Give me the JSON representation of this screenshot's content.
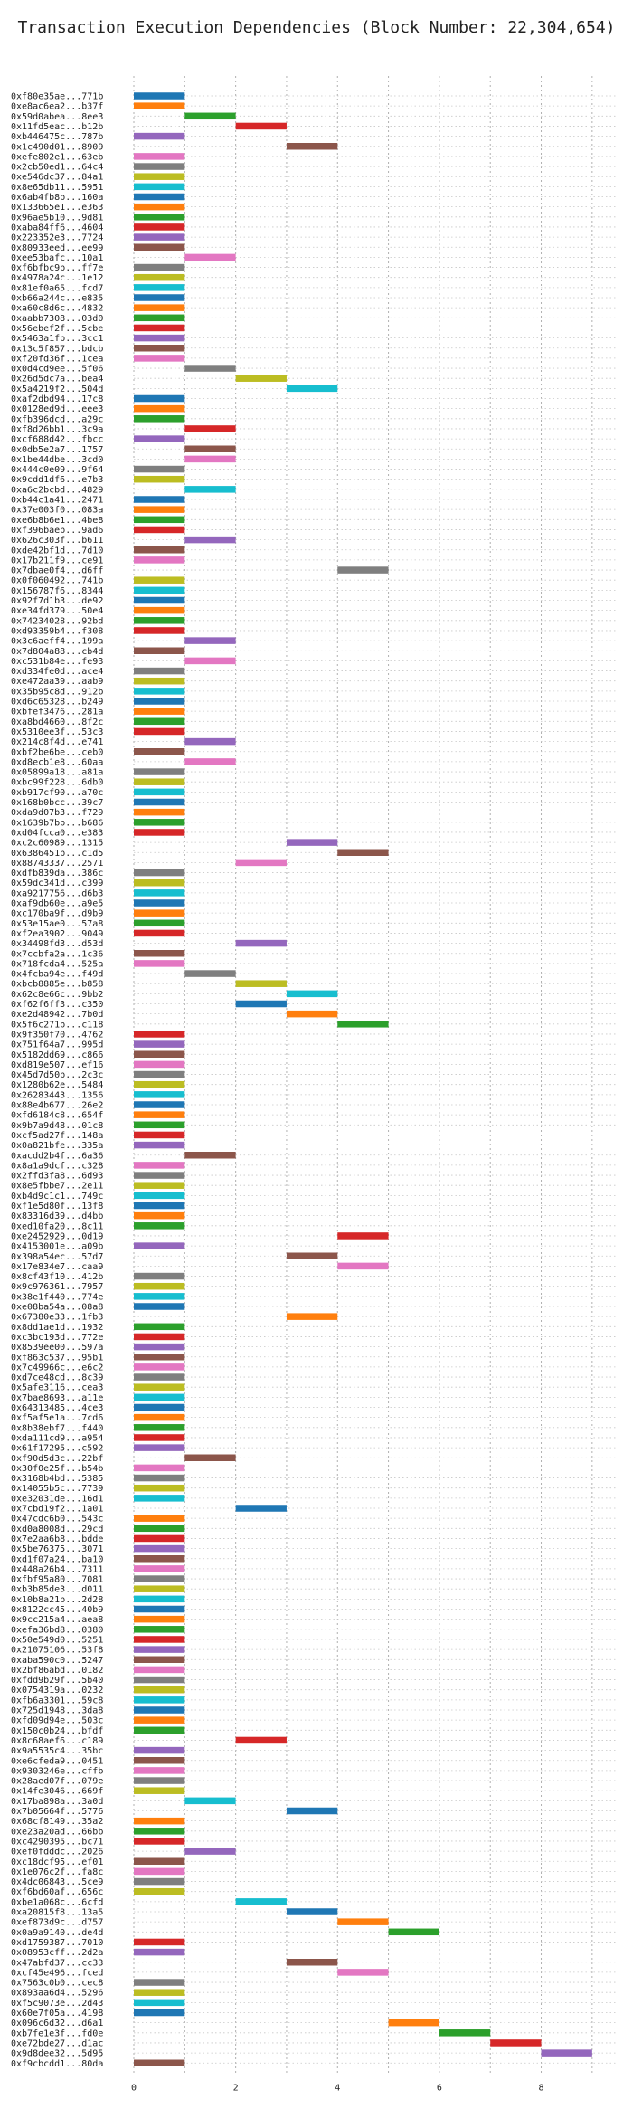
{
  "chart_data": {
    "type": "bar",
    "orientation": "horizontal",
    "title": "Transaction Execution Dependencies (Block Number: 22,304,654)",
    "xlabel": "",
    "ylabel": "",
    "xlim": [
      0,
      9.5
    ],
    "xticks": [
      0,
      2,
      4,
      6,
      8
    ],
    "grid": true,
    "palette": [
      "#1f77b4",
      "#ff7f0e",
      "#2ca02c",
      "#d62728",
      "#9467bd",
      "#8c564b",
      "#e377c2",
      "#7f7f7f",
      "#bcbd22",
      "#17becf"
    ],
    "bars": [
      {
        "label": "0xf80e35ae...771b",
        "start": 0,
        "end": 1
      },
      {
        "label": "0xe8ac6ea2...b37f",
        "start": 0,
        "end": 1
      },
      {
        "label": "0x59d0abea...8ee3",
        "start": 1,
        "end": 2
      },
      {
        "label": "0x11fd5eac...b12b",
        "start": 2,
        "end": 3
      },
      {
        "label": "0xb446475c...787b",
        "start": 0,
        "end": 1
      },
      {
        "label": "0x1c490d01...8909",
        "start": 3,
        "end": 4
      },
      {
        "label": "0xefe802e1...63eb",
        "start": 0,
        "end": 1
      },
      {
        "label": "0x2cb50ed1...64c4",
        "start": 0,
        "end": 1
      },
      {
        "label": "0xe546dc37...84a1",
        "start": 0,
        "end": 1
      },
      {
        "label": "0x8e65db11...5951",
        "start": 0,
        "end": 1
      },
      {
        "label": "0x6ab4fb8b...160a",
        "start": 0,
        "end": 1
      },
      {
        "label": "0x133665e1...e363",
        "start": 0,
        "end": 1
      },
      {
        "label": "0x96ae5b10...9d81",
        "start": 0,
        "end": 1
      },
      {
        "label": "0xaba84ff6...4604",
        "start": 0,
        "end": 1
      },
      {
        "label": "0x223352e3...7724",
        "start": 0,
        "end": 1
      },
      {
        "label": "0x80933eed...ee99",
        "start": 0,
        "end": 1
      },
      {
        "label": "0xee53bafc...10a1",
        "start": 1,
        "end": 2
      },
      {
        "label": "0xf6bfbc9b...ff7e",
        "start": 0,
        "end": 1
      },
      {
        "label": "0x4978a24c...1e12",
        "start": 0,
        "end": 1
      },
      {
        "label": "0x81ef0a65...fcd7",
        "start": 0,
        "end": 1
      },
      {
        "label": "0xb66a244c...e835",
        "start": 0,
        "end": 1
      },
      {
        "label": "0xa60c8d6c...4832",
        "start": 0,
        "end": 1
      },
      {
        "label": "0xaabb7308...03d0",
        "start": 0,
        "end": 1
      },
      {
        "label": "0x56ebef2f...5cbe",
        "start": 0,
        "end": 1
      },
      {
        "label": "0x5463a1fb...3cc1",
        "start": 0,
        "end": 1
      },
      {
        "label": "0x13c5f857...bdcb",
        "start": 0,
        "end": 1
      },
      {
        "label": "0xf20fd36f...1cea",
        "start": 0,
        "end": 1
      },
      {
        "label": "0x0d4cd9ee...5f06",
        "start": 1,
        "end": 2
      },
      {
        "label": "0x26d5dc7a...bea4",
        "start": 2,
        "end": 3
      },
      {
        "label": "0x5a4219f2...504d",
        "start": 3,
        "end": 4
      },
      {
        "label": "0xaf2dbd94...17c8",
        "start": 0,
        "end": 1
      },
      {
        "label": "0x0128ed9d...eee3",
        "start": 0,
        "end": 1
      },
      {
        "label": "0xfb396dcd...a29c",
        "start": 0,
        "end": 1
      },
      {
        "label": "0xf8d26bb1...3c9a",
        "start": 1,
        "end": 2
      },
      {
        "label": "0xcf688d42...fbcc",
        "start": 0,
        "end": 1
      },
      {
        "label": "0x0db5e2a7...1757",
        "start": 1,
        "end": 2
      },
      {
        "label": "0x1be44dbe...3cd0",
        "start": 1,
        "end": 2
      },
      {
        "label": "0x444c0e09...9f64",
        "start": 0,
        "end": 1
      },
      {
        "label": "0x9cdd1df6...e7b3",
        "start": 0,
        "end": 1
      },
      {
        "label": "0xa6c2bcbd...4829",
        "start": 1,
        "end": 2
      },
      {
        "label": "0xb44c1a41...2471",
        "start": 0,
        "end": 1
      },
      {
        "label": "0x37e003f0...083a",
        "start": 0,
        "end": 1
      },
      {
        "label": "0xe6b8b6e1...4be8",
        "start": 0,
        "end": 1
      },
      {
        "label": "0xf396baeb...9ad6",
        "start": 0,
        "end": 1
      },
      {
        "label": "0x626c303f...b611",
        "start": 1,
        "end": 2
      },
      {
        "label": "0xde42bf1d...7d10",
        "start": 0,
        "end": 1
      },
      {
        "label": "0x17b211f9...ce91",
        "start": 0,
        "end": 1
      },
      {
        "label": "0x7dbae0f4...d6ff",
        "start": 4,
        "end": 5
      },
      {
        "label": "0x0f060492...741b",
        "start": 0,
        "end": 1
      },
      {
        "label": "0x156787f6...8344",
        "start": 0,
        "end": 1
      },
      {
        "label": "0x92f7d1b3...de92",
        "start": 0,
        "end": 1
      },
      {
        "label": "0xe34fd379...50e4",
        "start": 0,
        "end": 1
      },
      {
        "label": "0x74234028...92bd",
        "start": 0,
        "end": 1
      },
      {
        "label": "0xd93359b4...f308",
        "start": 0,
        "end": 1
      },
      {
        "label": "0x3c6aeff4...199a",
        "start": 1,
        "end": 2
      },
      {
        "label": "0x7d804a88...cb4d",
        "start": 0,
        "end": 1
      },
      {
        "label": "0xc531b84e...fe93",
        "start": 1,
        "end": 2
      },
      {
        "label": "0xd334fe0d...ace4",
        "start": 0,
        "end": 1
      },
      {
        "label": "0xe472aa39...aab9",
        "start": 0,
        "end": 1
      },
      {
        "label": "0x35b95c8d...912b",
        "start": 0,
        "end": 1
      },
      {
        "label": "0xd6c65328...b249",
        "start": 0,
        "end": 1
      },
      {
        "label": "0xbfef3476...281a",
        "start": 0,
        "end": 1
      },
      {
        "label": "0xa8bd4660...8f2c",
        "start": 0,
        "end": 1
      },
      {
        "label": "0x5310ee3f...53c3",
        "start": 0,
        "end": 1
      },
      {
        "label": "0x214c8f4d...e741",
        "start": 1,
        "end": 2
      },
      {
        "label": "0xbf2be6be...ceb0",
        "start": 0,
        "end": 1
      },
      {
        "label": "0xd8ecb1e8...60aa",
        "start": 1,
        "end": 2
      },
      {
        "label": "0x05899a18...a81a",
        "start": 0,
        "end": 1
      },
      {
        "label": "0xbc99f228...6db0",
        "start": 0,
        "end": 1
      },
      {
        "label": "0xb917cf90...a70c",
        "start": 0,
        "end": 1
      },
      {
        "label": "0x168b0bcc...39c7",
        "start": 0,
        "end": 1
      },
      {
        "label": "0xda9d07b3...f729",
        "start": 0,
        "end": 1
      },
      {
        "label": "0x1639b7bb...b686",
        "start": 0,
        "end": 1
      },
      {
        "label": "0xd04fcca0...e383",
        "start": 0,
        "end": 1
      },
      {
        "label": "0xc2c60989...1315",
        "start": 3,
        "end": 4
      },
      {
        "label": "0x6386451b...c1d5",
        "start": 4,
        "end": 5
      },
      {
        "label": "0x88743337...2571",
        "start": 2,
        "end": 3
      },
      {
        "label": "0xdfb839da...386c",
        "start": 0,
        "end": 1
      },
      {
        "label": "0x59dc341d...c399",
        "start": 0,
        "end": 1
      },
      {
        "label": "0xa9217756...d6b3",
        "start": 0,
        "end": 1
      },
      {
        "label": "0xaf9db60e...a9e5",
        "start": 0,
        "end": 1
      },
      {
        "label": "0xc170ba9f...d9b9",
        "start": 0,
        "end": 1
      },
      {
        "label": "0x53e15ae0...57a8",
        "start": 0,
        "end": 1
      },
      {
        "label": "0xf2ea3902...9049",
        "start": 0,
        "end": 1
      },
      {
        "label": "0x34498fd3...d53d",
        "start": 2,
        "end": 3
      },
      {
        "label": "0x7ccbfa2a...1c36",
        "start": 0,
        "end": 1
      },
      {
        "label": "0x718fcda4...525a",
        "start": 0,
        "end": 1
      },
      {
        "label": "0x4fcba94e...f49d",
        "start": 1,
        "end": 2
      },
      {
        "label": "0xbcb8885e...b858",
        "start": 2,
        "end": 3
      },
      {
        "label": "0x62c8e66c...9bb2",
        "start": 3,
        "end": 4
      },
      {
        "label": "0xf62f6ff3...c350",
        "start": 2,
        "end": 3
      },
      {
        "label": "0xe2d48942...7b0d",
        "start": 3,
        "end": 4
      },
      {
        "label": "0x5f6c271b...c118",
        "start": 4,
        "end": 5
      },
      {
        "label": "0x9f350f70...4762",
        "start": 0,
        "end": 1
      },
      {
        "label": "0x751f64a7...995d",
        "start": 0,
        "end": 1
      },
      {
        "label": "0x5182dd69...c866",
        "start": 0,
        "end": 1
      },
      {
        "label": "0xd819e507...ef16",
        "start": 0,
        "end": 1
      },
      {
        "label": "0x45d7d50b...2c3c",
        "start": 0,
        "end": 1
      },
      {
        "label": "0x1280b62e...5484",
        "start": 0,
        "end": 1
      },
      {
        "label": "0x26283443...1356",
        "start": 0,
        "end": 1
      },
      {
        "label": "0x88e4b677...26e2",
        "start": 0,
        "end": 1
      },
      {
        "label": "0xfd6184c8...654f",
        "start": 0,
        "end": 1
      },
      {
        "label": "0x9b7a9d48...01c8",
        "start": 0,
        "end": 1
      },
      {
        "label": "0xcf5ad27f...148a",
        "start": 0,
        "end": 1
      },
      {
        "label": "0x0a821bfe...335a",
        "start": 0,
        "end": 1
      },
      {
        "label": "0xacdd2b4f...6a36",
        "start": 1,
        "end": 2
      },
      {
        "label": "0x8a1a9dcf...c328",
        "start": 0,
        "end": 1
      },
      {
        "label": "0x2ffd3fa8...6d93",
        "start": 0,
        "end": 1
      },
      {
        "label": "0x8e5fbbe7...2e11",
        "start": 0,
        "end": 1
      },
      {
        "label": "0xb4d9c1c1...749c",
        "start": 0,
        "end": 1
      },
      {
        "label": "0xf1e5d80f...13f8",
        "start": 0,
        "end": 1
      },
      {
        "label": "0x83316d39...d4bb",
        "start": 0,
        "end": 1
      },
      {
        "label": "0xed10fa20...8c11",
        "start": 0,
        "end": 1
      },
      {
        "label": "0xe2452929...0d19",
        "start": 4,
        "end": 5
      },
      {
        "label": "0x4153001e...a09b",
        "start": 0,
        "end": 1
      },
      {
        "label": "0x398a54ec...57d7",
        "start": 3,
        "end": 4
      },
      {
        "label": "0x17e834e7...caa9",
        "start": 4,
        "end": 5
      },
      {
        "label": "0x8cf43f10...412b",
        "start": 0,
        "end": 1
      },
      {
        "label": "0x9c976361...7957",
        "start": 0,
        "end": 1
      },
      {
        "label": "0x38e1f440...774e",
        "start": 0,
        "end": 1
      },
      {
        "label": "0xe08ba54a...08a8",
        "start": 0,
        "end": 1
      },
      {
        "label": "0x67380e33...1fb3",
        "start": 3,
        "end": 4
      },
      {
        "label": "0x8dd1ae1d...1932",
        "start": 0,
        "end": 1
      },
      {
        "label": "0xc3bc193d...772e",
        "start": 0,
        "end": 1
      },
      {
        "label": "0x8539ee00...597a",
        "start": 0,
        "end": 1
      },
      {
        "label": "0xf863c537...95b1",
        "start": 0,
        "end": 1
      },
      {
        "label": "0x7c49966c...e6c2",
        "start": 0,
        "end": 1
      },
      {
        "label": "0xd7ce48cd...8c39",
        "start": 0,
        "end": 1
      },
      {
        "label": "0x5afe3116...cea3",
        "start": 0,
        "end": 1
      },
      {
        "label": "0x7bae8693...a11e",
        "start": 0,
        "end": 1
      },
      {
        "label": "0x64313485...4ce3",
        "start": 0,
        "end": 1
      },
      {
        "label": "0xf5af5e1a...7cd6",
        "start": 0,
        "end": 1
      },
      {
        "label": "0x8b38ebf7...f440",
        "start": 0,
        "end": 1
      },
      {
        "label": "0xda111cd9...a954",
        "start": 0,
        "end": 1
      },
      {
        "label": "0x61f17295...c592",
        "start": 0,
        "end": 1
      },
      {
        "label": "0xf90d5d3c...22bf",
        "start": 1,
        "end": 2
      },
      {
        "label": "0x30f0e25f...b54b",
        "start": 0,
        "end": 1
      },
      {
        "label": "0x3168b4bd...5385",
        "start": 0,
        "end": 1
      },
      {
        "label": "0x14055b5c...7739",
        "start": 0,
        "end": 1
      },
      {
        "label": "0xe32031de...16d1",
        "start": 0,
        "end": 1
      },
      {
        "label": "0x7cbd19f2...1a01",
        "start": 2,
        "end": 3
      },
      {
        "label": "0x47cdc6b0...543c",
        "start": 0,
        "end": 1
      },
      {
        "label": "0xd0a8008d...29cd",
        "start": 0,
        "end": 1
      },
      {
        "label": "0x7e2aa6b8...bdde",
        "start": 0,
        "end": 1
      },
      {
        "label": "0x5be76375...3071",
        "start": 0,
        "end": 1
      },
      {
        "label": "0xd1f07a24...ba10",
        "start": 0,
        "end": 1
      },
      {
        "label": "0x448a26b4...7311",
        "start": 0,
        "end": 1
      },
      {
        "label": "0xfbf95a80...7081",
        "start": 0,
        "end": 1
      },
      {
        "label": "0xb3b85de3...d011",
        "start": 0,
        "end": 1
      },
      {
        "label": "0x10b8a21b...2d28",
        "start": 0,
        "end": 1
      },
      {
        "label": "0x8122cc45...40b9",
        "start": 0,
        "end": 1
      },
      {
        "label": "0x9cc215a4...aea8",
        "start": 0,
        "end": 1
      },
      {
        "label": "0xefa36bd8...0380",
        "start": 0,
        "end": 1
      },
      {
        "label": "0x50e549d0...5251",
        "start": 0,
        "end": 1
      },
      {
        "label": "0x21075106...53f8",
        "start": 0,
        "end": 1
      },
      {
        "label": "0xaba590c0...5247",
        "start": 0,
        "end": 1
      },
      {
        "label": "0x2bf86abd...0182",
        "start": 0,
        "end": 1
      },
      {
        "label": "0xfdd9b29f...5b40",
        "start": 0,
        "end": 1
      },
      {
        "label": "0x0754319a...0232",
        "start": 0,
        "end": 1
      },
      {
        "label": "0xfb6a3301...59c8",
        "start": 0,
        "end": 1
      },
      {
        "label": "0x725d1948...3da8",
        "start": 0,
        "end": 1
      },
      {
        "label": "0xfd09d94e...503c",
        "start": 0,
        "end": 1
      },
      {
        "label": "0x150c0b24...bfdf",
        "start": 0,
        "end": 1
      },
      {
        "label": "0x8c68aef6...c189",
        "start": 2,
        "end": 3
      },
      {
        "label": "0x9a5535c4...35bc",
        "start": 0,
        "end": 1
      },
      {
        "label": "0xe6cfeda9...0451",
        "start": 0,
        "end": 1
      },
      {
        "label": "0x9303246e...cffb",
        "start": 0,
        "end": 1
      },
      {
        "label": "0x28aed07f...079e",
        "start": 0,
        "end": 1
      },
      {
        "label": "0x14fe3046...669f",
        "start": 0,
        "end": 1
      },
      {
        "label": "0x17ba898a...3a0d",
        "start": 1,
        "end": 2
      },
      {
        "label": "0x7b05664f...5776",
        "start": 3,
        "end": 4
      },
      {
        "label": "0x68cf8149...35a2",
        "start": 0,
        "end": 1
      },
      {
        "label": "0xe23a20ad...66bb",
        "start": 0,
        "end": 1
      },
      {
        "label": "0xc4290395...bc71",
        "start": 0,
        "end": 1
      },
      {
        "label": "0xef0fdddc...2026",
        "start": 1,
        "end": 2
      },
      {
        "label": "0xc18dcf95...ef01",
        "start": 0,
        "end": 1
      },
      {
        "label": "0x1e076c2f...fa8c",
        "start": 0,
        "end": 1
      },
      {
        "label": "0x4dc06843...5ce9",
        "start": 0,
        "end": 1
      },
      {
        "label": "0xf6bd60af...656c",
        "start": 0,
        "end": 1
      },
      {
        "label": "0xbe1a068c...6cfd",
        "start": 2,
        "end": 3
      },
      {
        "label": "0xa20815f8...13a5",
        "start": 3,
        "end": 4
      },
      {
        "label": "0xef873d9c...d757",
        "start": 4,
        "end": 5
      },
      {
        "label": "0x0a9a9140...de4d",
        "start": 5,
        "end": 6
      },
      {
        "label": "0xd1759387...7010",
        "start": 0,
        "end": 1
      },
      {
        "label": "0x08953cff...2d2a",
        "start": 0,
        "end": 1
      },
      {
        "label": "0x47abfd37...cc33",
        "start": 3,
        "end": 4
      },
      {
        "label": "0xcf45e496...fced",
        "start": 4,
        "end": 5
      },
      {
        "label": "0x7563c0b0...cec8",
        "start": 0,
        "end": 1
      },
      {
        "label": "0x893aa6d4...5296",
        "start": 0,
        "end": 1
      },
      {
        "label": "0xf5c9073e...2d43",
        "start": 0,
        "end": 1
      },
      {
        "label": "0x60e7f05a...4198",
        "start": 0,
        "end": 1
      },
      {
        "label": "0x096c6d32...d6a1",
        "start": 5,
        "end": 6
      },
      {
        "label": "0xb7fe1e3f...fd0e",
        "start": 6,
        "end": 7
      },
      {
        "label": "0xe72bde27...d1ac",
        "start": 7,
        "end": 8
      },
      {
        "label": "0x9d8dee32...5d95",
        "start": 8,
        "end": 9
      },
      {
        "label": "0xf9cbcdd1...80da",
        "start": 0,
        "end": 1
      }
    ]
  }
}
